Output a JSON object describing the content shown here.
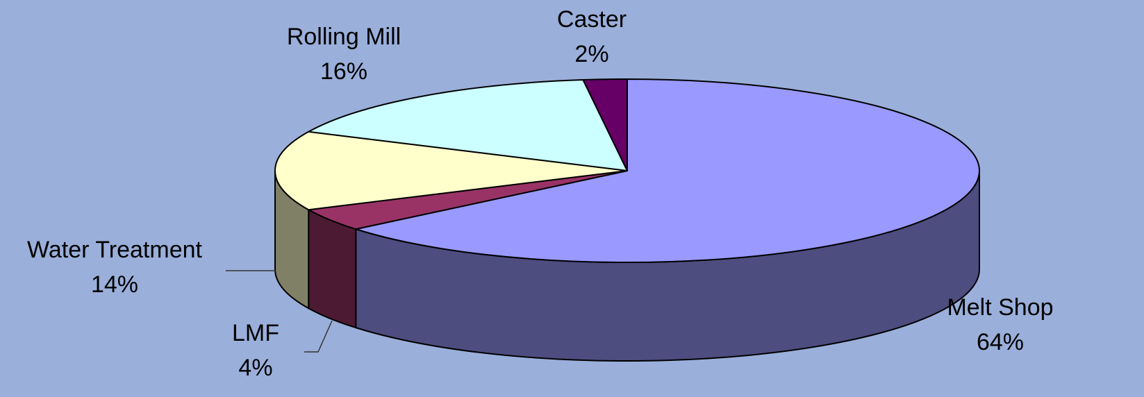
{
  "chart_data": {
    "type": "pie3d",
    "categories": [
      "Melt Shop",
      "LMF",
      "Water Treatment",
      "Rolling Mill",
      "Caster"
    ],
    "values": [
      64,
      4,
      14,
      16,
      2
    ],
    "value_labels": [
      "64%",
      "4%",
      "14%",
      "16%",
      "2%"
    ],
    "colors": [
      "#9999ff",
      "#993366",
      "#ffffcc",
      "#ccffff",
      "#660066"
    ],
    "side_colors": [
      "#4d4d80",
      "#4d1a33",
      "#808066",
      "#668080",
      "#330033"
    ]
  }
}
